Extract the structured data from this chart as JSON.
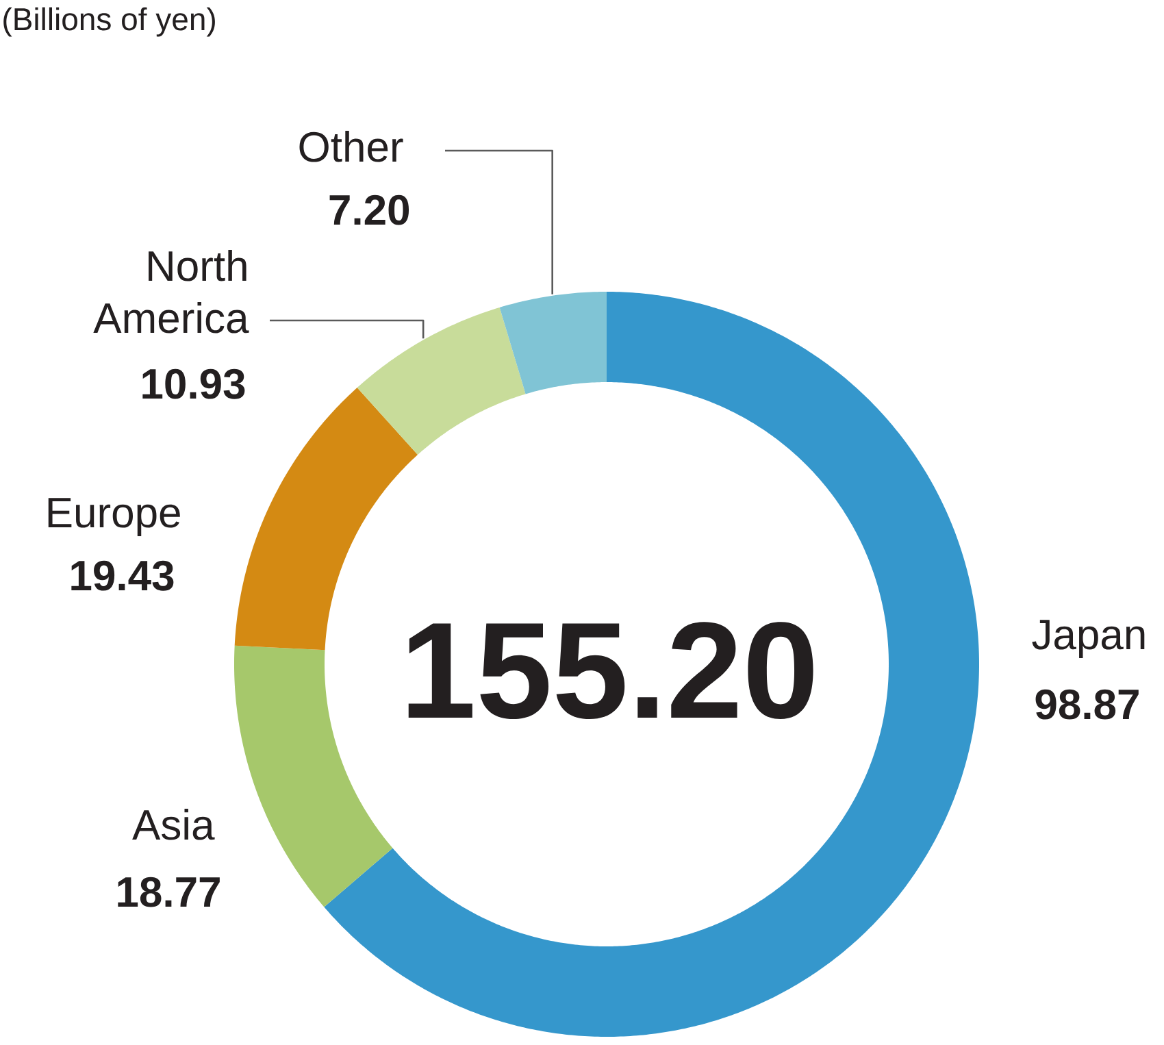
{
  "chart_data": {
    "type": "donut",
    "subtitle": "(Billions of yen)",
    "categories": [
      "Japan",
      "Asia",
      "Europe",
      "North America",
      "Other"
    ],
    "values": [
      98.87,
      18.77,
      19.43,
      10.93,
      7.2
    ],
    "value_labels": [
      "98.87",
      "18.77",
      "19.43",
      "10.93",
      "7.20"
    ],
    "colors": [
      "#3597cc",
      "#a6c86b",
      "#d48a13",
      "#c8dc9a",
      "#80c4d5"
    ],
    "annotations": [
      "155.20"
    ]
  }
}
